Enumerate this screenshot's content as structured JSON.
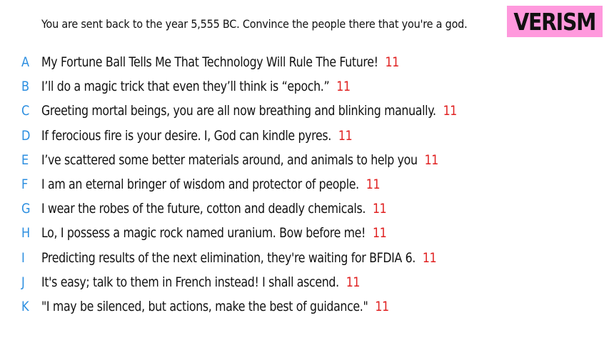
{
  "prompt": "You are sent back to the year 5,555 BC. Convince the people there that you're a god.",
  "brand": {
    "label": "VERISM",
    "background": "#ff99dd"
  },
  "colors": {
    "letter": "#2b8ee0",
    "score": "#e02020"
  },
  "answers": [
    {
      "letter": "A",
      "text": "My Fortune Ball Tells Me That Technology Will Rule The Future!",
      "score": "11"
    },
    {
      "letter": "B",
      "text": "I’ll do a magic trick that even they’ll think is “epoch.”",
      "score": "11"
    },
    {
      "letter": "C",
      "text": "Greeting mortal beings, you are all now breathing and blinking manually.",
      "score": "11"
    },
    {
      "letter": "D",
      "text": "If ferocious fire is your desire. I, God can kindle pyres.",
      "score": "11"
    },
    {
      "letter": "E",
      "text": "I’ve scattered some better materials around, and animals to help you",
      "score": "11"
    },
    {
      "letter": "F",
      "text": "I am an eternal bringer of wisdom and protector of people.",
      "score": "11"
    },
    {
      "letter": "G",
      "text": "I wear the robes of the future, cotton and deadly chemicals.",
      "score": "11"
    },
    {
      "letter": "H",
      "text": "Lo, I possess a magic rock named uranium. Bow before me!",
      "score": "11"
    },
    {
      "letter": "I",
      "text": "Predicting results of the next elimination, they're waiting for BFDIA 6.",
      "score": "11"
    },
    {
      "letter": "J",
      "text": "It's easy; talk to them in French instead! I shall ascend.",
      "score": "11"
    },
    {
      "letter": "K",
      "text": "\"I may be silenced, but actions, make the best of guidance.\"",
      "score": "11"
    }
  ]
}
